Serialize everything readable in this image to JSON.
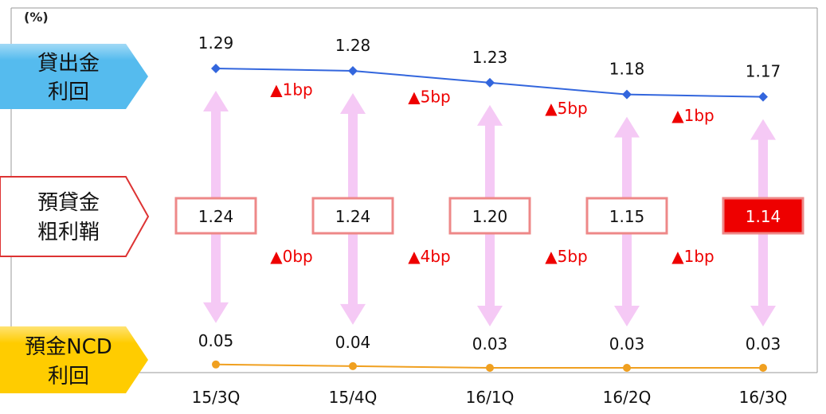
{
  "chart_data": {
    "type": "line",
    "unit": "(%)",
    "categories": [
      "15/3Q",
      "15/4Q",
      "16/1Q",
      "16/2Q",
      "16/3Q"
    ],
    "series": [
      {
        "name": "貸出金利回",
        "label_lines": [
          "貸出金",
          "利回"
        ],
        "values": [
          1.29,
          1.28,
          1.23,
          1.18,
          1.17
        ],
        "color": "#3366dd"
      },
      {
        "name": "預金NCD利回",
        "label_lines": [
          "預金NCD",
          "利回"
        ],
        "values": [
          0.05,
          0.04,
          0.03,
          0.03,
          0.03
        ],
        "color": "#f0a020"
      }
    ],
    "spread": {
      "name": "預貸金粗利鞘",
      "label_lines": [
        "預貸金",
        "粗利鞘"
      ],
      "values": [
        "1.24",
        "1.24",
        "1.20",
        "1.15",
        "1.14"
      ],
      "highlight_index": 4
    },
    "loan_rate_changes": [
      "▲1bp",
      "▲5bp",
      "▲5bp",
      "▲1bp"
    ],
    "spread_changes": [
      "▲0bp",
      "▲4bp",
      "▲5bp",
      "▲1bp"
    ],
    "colors": {
      "loan_label_bg": "#55bbee",
      "deposit_label_bg": "#ffcc00",
      "spread_label_border": "#dd3333",
      "box_border": "#ee8888",
      "highlight_box": "#ee0000",
      "arrow": "#f5c9f5",
      "change_text": "#ee0000"
    }
  }
}
